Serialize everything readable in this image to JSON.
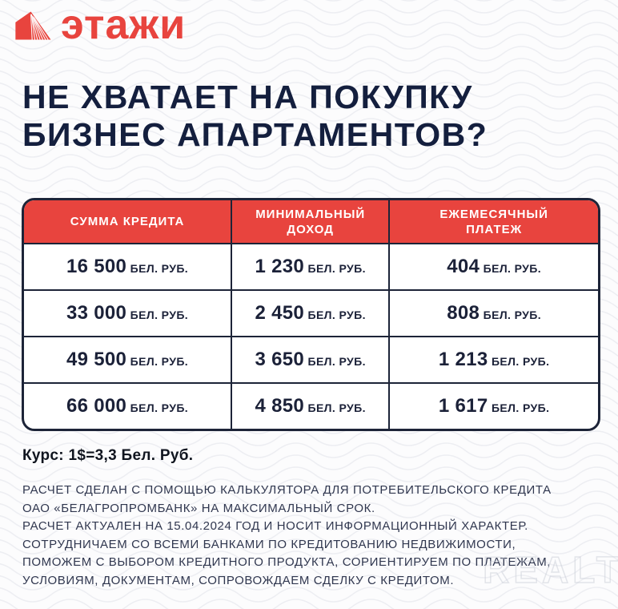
{
  "brand": {
    "name": "этажи",
    "icon": "etazhi-house-icon",
    "accent_red": "#e8443e"
  },
  "heading": {
    "line1": "НЕ ХВАТАЕТ НА ПОКУПКУ",
    "line2": "БИЗНЕС АПАРТАМЕНТОВ?"
  },
  "table": {
    "columns": [
      "СУММА КРЕДИТА",
      "МИНИМАЛЬНЫЙ ДОХОД",
      "ЕЖЕМЕСЯЧНЫЙ ПЛАТЕЖ"
    ],
    "rows": [
      [
        {
          "amount": "16 500",
          "unit": "БЕЛ. РУБ."
        },
        {
          "amount": "1 230",
          "unit": "БЕЛ. РУБ."
        },
        {
          "amount": "404",
          "unit": "БЕЛ. РУБ."
        }
      ],
      [
        {
          "amount": "33 000",
          "unit": "БЕЛ. РУБ."
        },
        {
          "amount": "2 450",
          "unit": "БЕЛ. РУБ."
        },
        {
          "amount": "808",
          "unit": "БЕЛ. РУБ."
        }
      ],
      [
        {
          "amount": "49 500",
          "unit": "БЕЛ. РУБ."
        },
        {
          "amount": "3 650",
          "unit": "БЕЛ. РУБ."
        },
        {
          "amount": "1 213",
          "unit": "БЕЛ. РУБ."
        }
      ],
      [
        {
          "amount": "66 000",
          "unit": "БЕЛ. РУБ."
        },
        {
          "amount": "4 850",
          "unit": "БЕЛ. РУБ."
        },
        {
          "amount": "1 617",
          "unit": "БЕЛ. РУБ."
        }
      ]
    ]
  },
  "exchange_rate": "Курс: 1$=3,3 Бел. Руб.",
  "disclaimer": {
    "lines": [
      "РАСЧЕТ СДЕЛАН С ПОМОЩЬЮ КАЛЬКУЛЯТОРА ДЛЯ ПОТРЕБИТЕЛЬСКОГО КРЕДИТА",
      "ОАО «БЕЛАГРОПРОМБАНК» НА МАКСИМАЛЬНЫЙ СРОК.",
      "РАСЧЕТ АКТУАЛЕН НА 15.04.2024 ГОД И НОСИТ ИНФОРМАЦИОННЫЙ ХАРАКТЕР.",
      "СОТРУДНИЧАЕМ СО ВСЕМИ БАНКАМИ ПО КРЕДИТОВАНИЮ НЕДВИЖИМОСТИ,",
      "ПОМОЖЕМ С ВЫБОРОМ КРЕДИТНОГО ПРОДУКТА, СОРИЕНТИРУЕМ ПО ПЛАТЕЖАМ,",
      "УСЛОВИЯМ, ДОКУМЕНТАМ, СОПРОВОЖДАЕМ СДЕЛКУ С КРЕДИТОМ."
    ]
  },
  "watermark": "REALT",
  "colors": {
    "accent_red": "#e8443e",
    "navy_border": "#1d2438",
    "heading_navy": "#141f3e",
    "background": "#fcfcfd"
  }
}
